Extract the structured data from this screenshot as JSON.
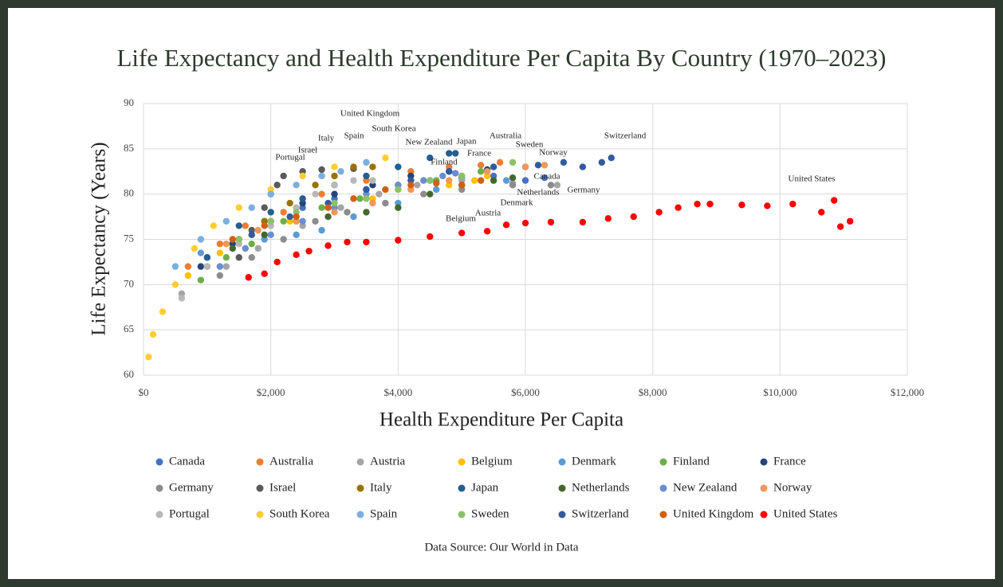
{
  "chart_data": {
    "type": "scatter",
    "title": "Life Expectancy and Health Expenditure Per Capita By Country (1970–2023)",
    "x_label": "Health Expenditure Per Capita",
    "y_label": "Life Expectancy (Years)",
    "source": "Data Source: Our World in Data",
    "xlim": [
      0,
      12000
    ],
    "xticks": [
      {
        "value": 0,
        "label": "$0"
      },
      {
        "value": 2000,
        "label": "$2,000"
      },
      {
        "value": 4000,
        "label": "$4,000"
      },
      {
        "value": 6000,
        "label": "$6,000"
      },
      {
        "value": 8000,
        "label": "$8,000"
      },
      {
        "value": 10000,
        "label": "$10,000"
      },
      {
        "value": 12000,
        "label": "$12,000"
      }
    ],
    "ylim": [
      60,
      90
    ],
    "yticks": [
      60,
      65,
      70,
      75,
      80,
      85,
      90
    ],
    "grid": true,
    "legend": "bottom",
    "annotations": [
      "United Kingdom",
      "South Korea",
      "Italy",
      "Spain",
      "Israel",
      "Portugal",
      "New Zealand",
      "Japan",
      "Australia",
      "Sweden",
      "France",
      "Finland",
      "Norway",
      "Switzerland",
      "Canada",
      "Netherlands",
      "Germany",
      "Denmark",
      "Austria",
      "Belgium",
      "United States"
    ],
    "series": [
      {
        "name": "Canada",
        "color": "#4472c4",
        "x": [
          1000,
          1500,
          2000,
          2500,
          3000,
          3500,
          4000,
          4500,
          5000,
          5500,
          6000,
          6300
        ],
        "values": [
          73,
          75,
          77,
          78.5,
          79.5,
          80.5,
          81,
          81.5,
          81.8,
          82,
          81.5,
          81.8
        ]
      },
      {
        "name": "Australia",
        "color": "#ed7d31",
        "x": [
          700,
          1200,
          1600,
          2200,
          2800,
          3500,
          4200,
          4800,
          5300,
          5600
        ],
        "values": [
          72,
          74.5,
          76.5,
          78,
          80,
          81.5,
          82.5,
          83,
          83.2,
          83.5
        ]
      },
      {
        "name": "Austria",
        "color": "#a5a5a5",
        "x": [
          600,
          1300,
          1800,
          2500,
          3100,
          3700,
          4300,
          5000,
          5800,
          6500
        ],
        "values": [
          69,
          72,
          74,
          76.5,
          78.5,
          80,
          81,
          81.5,
          81.2,
          81
        ]
      },
      {
        "name": "Belgium",
        "color": "#ffc000",
        "x": [
          700,
          1200,
          1700,
          2300,
          3000,
          3600,
          4200,
          4800,
          5200,
          5400
        ],
        "values": [
          71,
          73.5,
          75.5,
          77,
          78.5,
          79.5,
          80.5,
          81,
          81.5,
          82
        ]
      },
      {
        "name": "Denmark",
        "color": "#5b9bd5",
        "x": [
          900,
          1400,
          1900,
          2400,
          2800,
          3300,
          4000,
          4600,
          5000,
          5700
        ],
        "values": [
          73.5,
          74.5,
          75,
          75.5,
          76,
          77.5,
          79,
          80.5,
          81,
          81.5
        ]
      },
      {
        "name": "Finland",
        "color": "#70ad47",
        "x": [
          900,
          1300,
          1700,
          2200,
          2800,
          3400,
          4000,
          4600,
          5000,
          5300
        ],
        "values": [
          70.5,
          73,
          74.5,
          77,
          78.5,
          79.5,
          81,
          81.5,
          82,
          82.5
        ]
      },
      {
        "name": "France",
        "color": "#264478",
        "x": [
          900,
          1400,
          1900,
          2500,
          3000,
          3600,
          4200,
          4800,
          5400,
          6000
        ],
        "values": [
          72,
          74.5,
          77,
          79,
          80,
          81,
          82,
          82.5,
          82.7,
          83
        ]
      },
      {
        "name": "Germany",
        "color": "#8c8c8c",
        "x": [
          1200,
          1700,
          2200,
          2700,
          3200,
          3800,
          4400,
          5000,
          5800,
          6400
        ],
        "values": [
          71,
          73,
          75,
          77,
          78,
          79,
          80,
          80.5,
          81,
          81
        ]
      },
      {
        "name": "Israel",
        "color": "#5a5a5a",
        "x": [
          1500,
          1700,
          1900,
          2000,
          2100,
          2200,
          2500,
          2800,
          3300
        ],
        "values": [
          73,
          76,
          78.5,
          80,
          81,
          82,
          82.5,
          82.7,
          82.8
        ]
      },
      {
        "name": "Italy",
        "color": "#997300",
        "x": [
          1000,
          1500,
          1900,
          2300,
          2700,
          3000,
          3300,
          3600
        ],
        "values": [
          72,
          75,
          77,
          79,
          81,
          82,
          83,
          83
        ]
      },
      {
        "name": "Japan",
        "color": "#255e91",
        "x": [
          1000,
          1500,
          2000,
          2500,
          3000,
          3500,
          4000,
          4500,
          4800,
          4900
        ],
        "values": [
          73,
          76.5,
          78,
          79.5,
          81,
          82,
          83,
          84,
          84.5,
          84.5
        ]
      },
      {
        "name": "Netherlands",
        "color": "#43682b",
        "x": [
          1400,
          1900,
          2400,
          2900,
          3500,
          4000,
          4500,
          5000,
          5500,
          5800
        ],
        "values": [
          74,
          75.5,
          77,
          77.5,
          78,
          78.5,
          80,
          81,
          81.5,
          81.8
        ]
      },
      {
        "name": "New Zealand",
        "color": "#698ed0",
        "x": [
          1200,
          1600,
          2000,
          2500,
          3000,
          3500,
          4000,
          4400,
          4700,
          4900
        ],
        "values": [
          72,
          74,
          75.5,
          77,
          78.5,
          80,
          81,
          81.5,
          82,
          82.3
        ]
      },
      {
        "name": "Norway",
        "color": "#f1975a",
        "x": [
          1300,
          1800,
          2400,
          3000,
          3600,
          4200,
          4800,
          5400,
          6000,
          6300
        ],
        "values": [
          74.5,
          76,
          77,
          78,
          79,
          80.5,
          81.5,
          82.5,
          83,
          83.2
        ]
      },
      {
        "name": "Portugal",
        "color": "#b7b7b7",
        "x": [
          600,
          1000,
          1500,
          2000,
          2400,
          2700,
          3000,
          3300,
          3600
        ],
        "values": [
          68.5,
          72,
          74.5,
          76.5,
          78.5,
          80,
          81,
          81.5,
          81.5
        ]
      },
      {
        "name": "South Korea",
        "color": "#ffcd33",
        "x": [
          80,
          150,
          300,
          500,
          800,
          1100,
          1500,
          2000,
          2500,
          3000,
          3500,
          3800
        ],
        "values": [
          62,
          64.5,
          67,
          70,
          74,
          76.5,
          78.5,
          80.5,
          82,
          83,
          83.5,
          84
        ]
      },
      {
        "name": "Spain",
        "color": "#7cafdd",
        "x": [
          500,
          900,
          1300,
          1700,
          2000,
          2400,
          2800,
          3100,
          3500
        ],
        "values": [
          72,
          75,
          77,
          78.5,
          80,
          81,
          82,
          82.5,
          83.5
        ]
      },
      {
        "name": "Sweden",
        "color": "#8cc168",
        "x": [
          1500,
          2000,
          2400,
          3000,
          3500,
          4000,
          4500,
          5000,
          5500,
          5800
        ],
        "values": [
          75,
          77,
          78,
          79,
          79.5,
          80.5,
          81.5,
          82,
          83,
          83.5
        ]
      },
      {
        "name": "Switzerland",
        "color": "#335aa1",
        "x": [
          1700,
          2300,
          2900,
          3500,
          4200,
          4800,
          5500,
          6200,
          6600,
          6900,
          7200,
          7350
        ],
        "values": [
          75.5,
          77.5,
          79,
          80.5,
          81.5,
          82.5,
          83,
          83.2,
          83.5,
          83,
          83.5,
          84
        ]
      },
      {
        "name": "United Kingdom",
        "color": "#d26012",
        "x": [
          1400,
          1900,
          2400,
          2900,
          3300,
          3800,
          4200,
          4600,
          5000,
          5300
        ],
        "values": [
          75,
          76.5,
          77.5,
          78.5,
          79.5,
          80.5,
          81,
          81.2,
          81,
          81.5
        ]
      },
      {
        "name": "United States",
        "color": "#ff0000",
        "x": [
          1650,
          1900,
          2100,
          2400,
          2600,
          2900,
          3200,
          3500,
          4000,
          4500,
          5000,
          5400,
          5700,
          6000,
          6400,
          6900,
          7300,
          7700,
          8100,
          8400,
          8700,
          8900,
          9400,
          9800,
          10200,
          10650,
          10850,
          10950,
          11100
        ],
        "values": [
          70.8,
          71.2,
          72.5,
          73.3,
          73.7,
          74.3,
          74.7,
          74.7,
          74.9,
          75.3,
          75.7,
          75.9,
          76.6,
          76.8,
          76.9,
          76.9,
          77.3,
          77.5,
          78,
          78.5,
          78.9,
          78.9,
          78.8,
          78.7,
          78.9,
          78,
          79.3,
          76.4,
          77
        ]
      }
    ]
  }
}
